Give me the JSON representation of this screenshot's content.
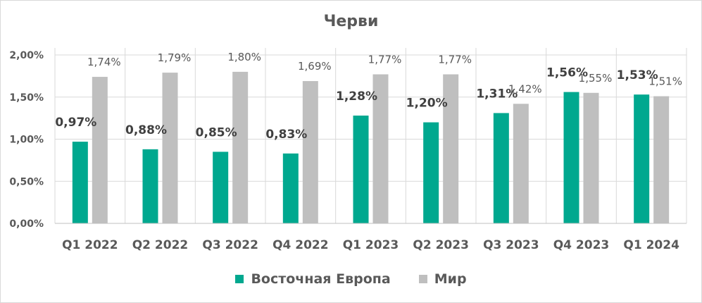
{
  "chart_data": {
    "type": "bar",
    "title": "Черви",
    "categories": [
      "Q1 2022",
      "Q2 2022",
      "Q3 2022",
      "Q4 2022",
      "Q1 2023",
      "Q2 2023",
      "Q3 2023",
      "Q4 2023",
      "Q1 2024"
    ],
    "series": [
      {
        "name": "Восточная Европа",
        "color": "#00a88f",
        "values": [
          0.97,
          0.88,
          0.85,
          0.83,
          1.28,
          1.2,
          1.31,
          1.56,
          1.53
        ],
        "labels": [
          "0,97%",
          "0,88%",
          "0,85%",
          "0,83%",
          "1,28%",
          "1,20%",
          "1,31%",
          "1,56%",
          "1,53%"
        ]
      },
      {
        "name": "Мир",
        "color": "#bfbfbf",
        "values": [
          1.74,
          1.79,
          1.8,
          1.69,
          1.77,
          1.77,
          1.42,
          1.55,
          1.51
        ],
        "labels": [
          "1,74%",
          "1,79%",
          "1,80%",
          "1,69%",
          "1,77%",
          "1,77%",
          "1,42%",
          "1,55%",
          "1,51%"
        ]
      }
    ],
    "ylim": [
      0,
      2
    ],
    "yticks": [
      {
        "value": 0,
        "label": "0,00%"
      },
      {
        "value": 0.5,
        "label": "0,50%"
      },
      {
        "value": 1.0,
        "label": "1,00%"
      },
      {
        "value": 1.5,
        "label": "1,50%"
      },
      {
        "value": 2.0,
        "label": "2,00%"
      }
    ],
    "grid": true,
    "legend": "bottom"
  }
}
